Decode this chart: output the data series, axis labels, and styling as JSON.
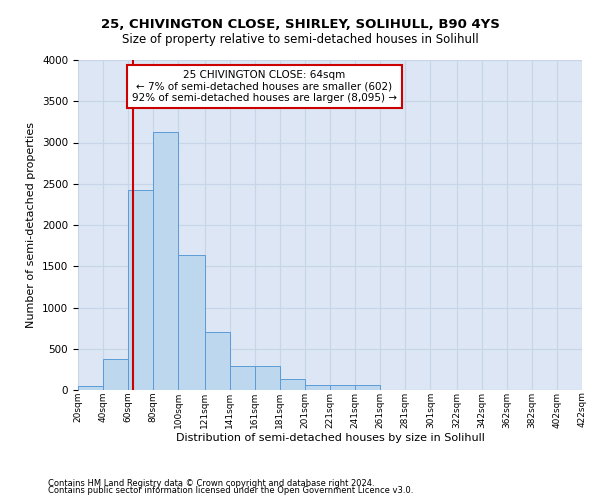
{
  "title1": "25, CHIVINGTON CLOSE, SHIRLEY, SOLIHULL, B90 4YS",
  "title2": "Size of property relative to semi-detached houses in Solihull",
  "xlabel": "Distribution of semi-detached houses by size in Solihull",
  "ylabel": "Number of semi-detached properties",
  "footnote1": "Contains HM Land Registry data © Crown copyright and database right 2024.",
  "footnote2": "Contains public sector information licensed under the Open Government Licence v3.0.",
  "annotation_title": "25 CHIVINGTON CLOSE: 64sqm",
  "annotation_line1": "← 7% of semi-detached houses are smaller (602)",
  "annotation_line2": "92% of semi-detached houses are larger (8,095) →",
  "bar_edges": [
    20,
    40,
    60,
    80,
    100,
    121,
    141,
    161,
    181,
    201,
    221,
    241,
    261,
    281,
    301,
    322,
    342,
    362,
    382,
    402,
    422
  ],
  "bar_heights": [
    50,
    380,
    2430,
    3130,
    1640,
    700,
    290,
    290,
    130,
    55,
    55,
    55,
    0,
    0,
    0,
    0,
    0,
    0,
    0,
    0,
    0
  ],
  "bar_categories": [
    "20sqm",
    "40sqm",
    "60sqm",
    "80sqm",
    "100sqm",
    "121sqm",
    "141sqm",
    "161sqm",
    "181sqm",
    "201sqm",
    "221sqm",
    "241sqm",
    "261sqm",
    "281sqm",
    "301sqm",
    "322sqm",
    "342sqm",
    "362sqm",
    "382sqm",
    "402sqm",
    "422sqm"
  ],
  "bar_color": "#bdd7ee",
  "bar_edge_color": "#5b9bd5",
  "vline_color": "#cc0000",
  "vline_x": 64,
  "annotation_box_edge_color": "#cc0000",
  "ylim": [
    0,
    4000
  ],
  "yticks": [
    0,
    500,
    1000,
    1500,
    2000,
    2500,
    3000,
    3500,
    4000
  ],
  "grid_color": "#c8d4e8",
  "background_color": "#dce6f5",
  "xlim_left": 20,
  "xlim_right": 422
}
